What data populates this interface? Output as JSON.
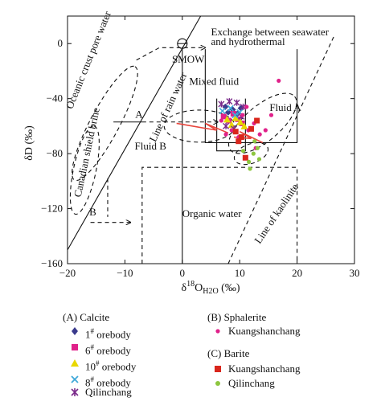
{
  "chart_data": {
    "type": "scatter",
    "x_axis": {
      "label_parts": [
        "δ",
        "18",
        "O",
        "H2O",
        " (‰)"
      ],
      "min": -20,
      "max": 30,
      "ticks": [
        -20,
        -10,
        0,
        10,
        20,
        30
      ],
      "tick_labels": [
        "−20",
        "−10",
        "0",
        "10",
        "20",
        "30"
      ]
    },
    "y_axis": {
      "label": "δD (‰)",
      "min": -160,
      "max": 20,
      "ticks": [
        -160,
        -120,
        -80,
        -40,
        0
      ],
      "tick_labels": [
        "−160",
        "−120",
        "−80",
        "−40",
        "0"
      ]
    },
    "grid": false,
    "annotations": {
      "pore_water": "Oceanic crust pore water",
      "exchange_line1": "Exchange between seawater",
      "exchange_line2": "and hydrothermal",
      "smow": "SMOW",
      "mixed": "Mixed fluid",
      "rain": "Line of rain water",
      "fluid_a": "Fluid A",
      "a": "A",
      "fluid_b": "Fluid B",
      "brine": "Canadian shield brine",
      "b": "B",
      "organic": "Organic water",
      "kaolinite": "Line of kaolinite"
    },
    "series": [
      {
        "name": "1# orebody",
        "group": "A",
        "marker": "diamond",
        "color": "#3a3a8c",
        "points": [
          [
            7.5,
            -46
          ],
          [
            8.0,
            -50
          ],
          [
            8.8,
            -48
          ],
          [
            9.6,
            -51
          ],
          [
            10.2,
            -47
          ]
        ]
      },
      {
        "name": "6# orebody",
        "group": "A",
        "marker": "square",
        "color": "#e0218a",
        "points": [
          [
            7.2,
            -53
          ],
          [
            8.1,
            -56
          ],
          [
            8.9,
            -51
          ],
          [
            9.7,
            -55
          ],
          [
            10.4,
            -58
          ]
        ]
      },
      {
        "name": "10# orebody",
        "group": "A",
        "marker": "triangle",
        "color": "#e8d800",
        "points": [
          [
            7.8,
            -55
          ],
          [
            8.6,
            -59
          ],
          [
            9.3,
            -54
          ],
          [
            10.1,
            -57
          ],
          [
            10.8,
            -60
          ]
        ]
      },
      {
        "name": "8# orebody",
        "group": "A",
        "marker": "x",
        "color": "#3fa9d9",
        "points": [
          [
            7.0,
            -49
          ],
          [
            8.4,
            -47
          ],
          [
            9.2,
            -52
          ],
          [
            10.0,
            -50
          ]
        ]
      },
      {
        "name": "Qilinchang",
        "group": "A",
        "marker": "asterisk",
        "color": "#7a2a8a",
        "points": [
          [
            6.8,
            -44
          ],
          [
            8.2,
            -42
          ],
          [
            9.5,
            -43
          ],
          [
            10.6,
            -46
          ],
          [
            7.6,
            -60
          ],
          [
            9.0,
            -62
          ],
          [
            10.3,
            -53
          ]
        ]
      },
      {
        "name": "Kuangshanchang",
        "group": "B",
        "marker": "dot",
        "color": "#e0218a",
        "points": [
          [
            6.8,
            -56
          ],
          [
            7.6,
            -66
          ],
          [
            8.6,
            -63
          ],
          [
            9.8,
            -68
          ],
          [
            10.5,
            -52
          ],
          [
            11.5,
            -63
          ],
          [
            12.5,
            -58
          ],
          [
            13.5,
            -66
          ],
          [
            14.5,
            -63
          ],
          [
            15.5,
            -52
          ],
          [
            11.2,
            -46
          ],
          [
            12.8,
            -76
          ],
          [
            16.8,
            -27
          ]
        ]
      },
      {
        "name": "Kuangshanchang",
        "group": "C",
        "marker": "square",
        "color": "#d9261c",
        "points": [
          [
            9.3,
            -64
          ],
          [
            10.3,
            -68
          ],
          [
            11.0,
            -83
          ],
          [
            12.0,
            -62
          ],
          [
            13.0,
            -56
          ],
          [
            9.8,
            -71
          ]
        ]
      },
      {
        "name": "Qilinchang",
        "group": "C",
        "marker": "dot",
        "color": "#8dc63f",
        "points": [
          [
            10.6,
            -78
          ],
          [
            11.6,
            -86
          ],
          [
            12.4,
            -80
          ],
          [
            13.1,
            -76
          ],
          [
            11.8,
            -91
          ],
          [
            12.6,
            -71
          ],
          [
            13.4,
            -84
          ]
        ]
      }
    ],
    "legend": {
      "placement": "bottom",
      "group_a": "(A) Calcite",
      "group_b": "(B) Sphalerite",
      "group_c": "(C) Barite",
      "a1": {
        "pre": "1",
        "sup": "#",
        "post": " orebody"
      },
      "a2": {
        "pre": "6",
        "sup": "#",
        "post": " orebody"
      },
      "a3": {
        "pre": "10",
        "sup": "#",
        "post": " orebody"
      },
      "a4": {
        "pre": "8",
        "sup": "#",
        "post": " orebody"
      },
      "a5": "Qilinchang",
      "b1": "Kuangshanchang",
      "c1": "Kuangshanchang",
      "c2": "Qilinchang"
    }
  }
}
